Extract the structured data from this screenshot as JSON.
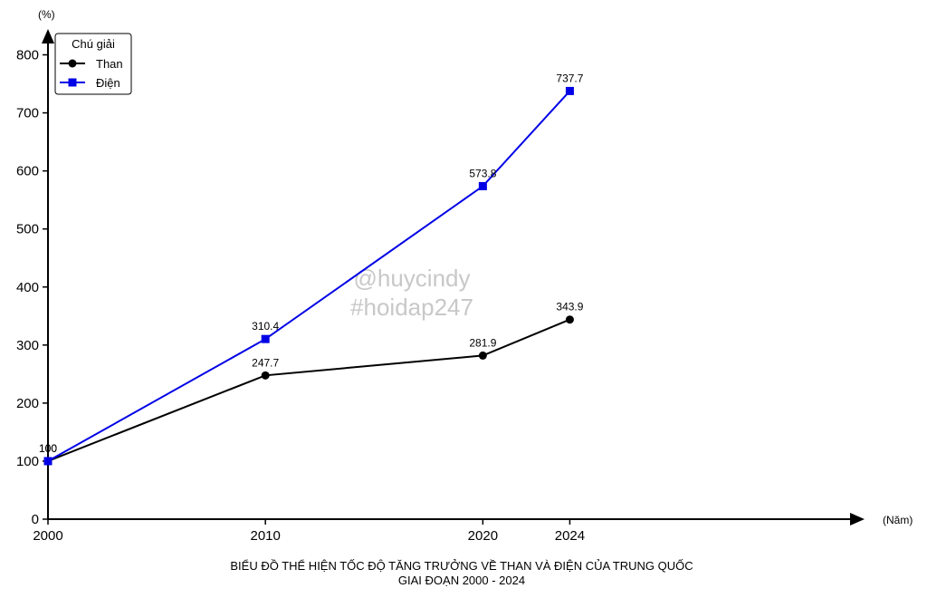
{
  "chart_data": {
    "type": "line",
    "title": [
      "BIỂU ĐỒ THỂ HIỆN TỐC ĐỘ TĂNG TRƯỞNG VỀ THAN VÀ ĐIỆN CỦA TRUNG QUỐC",
      "GIAI ĐOẠN 2000 - 2024"
    ],
    "xlabel": "(Năm)",
    "ylabel": "(%)",
    "x": [
      2000,
      2010,
      2020,
      2024
    ],
    "xlim": [
      2000,
      2028
    ],
    "ylim": [
      0,
      850
    ],
    "yticks": [
      0,
      100,
      200,
      300,
      400,
      500,
      600,
      700,
      800
    ],
    "legend": {
      "title": "Chú giải",
      "position": "top-left"
    },
    "series": [
      {
        "name": "Than",
        "values": [
          100,
          247.7,
          281.9,
          343.9
        ],
        "labels": [
          "100",
          "247.7",
          "281.9",
          "343.9"
        ],
        "color": "#000000",
        "marker": "circle"
      },
      {
        "name": "Điện",
        "values": [
          100,
          310.4,
          573.8,
          737.7
        ],
        "labels": [
          "100",
          "310.4",
          "573.8",
          "737.7"
        ],
        "color": "#0000e6",
        "marker": "square"
      }
    ],
    "watermark": [
      "@huycindy",
      "#hoidap247"
    ]
  }
}
